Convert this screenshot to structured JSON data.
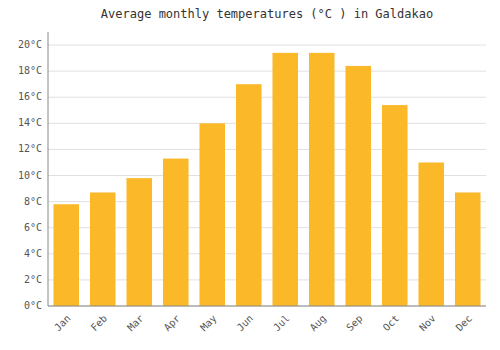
{
  "chart_data": {
    "type": "bar",
    "title": "Average monthly temperatures (°C ) in Galdakao",
    "categories": [
      "Jan",
      "Feb",
      "Mar",
      "Apr",
      "May",
      "Jun",
      "Jul",
      "Aug",
      "Sep",
      "Oct",
      "Nov",
      "Dec"
    ],
    "values": [
      7.8,
      8.7,
      9.8,
      11.3,
      14.0,
      17.0,
      19.4,
      19.4,
      18.4,
      15.4,
      11.0,
      8.7
    ],
    "color": "#FBB829",
    "ylim": [
      0,
      21
    ],
    "yticks": [
      {
        "value": 0,
        "label": "0°C"
      },
      {
        "value": 2,
        "label": "2°C"
      },
      {
        "value": 4,
        "label": "4°C"
      },
      {
        "value": 6,
        "label": "6°C"
      },
      {
        "value": 8,
        "label": "8°C"
      },
      {
        "value": 10,
        "label": "10°C"
      },
      {
        "value": 12,
        "label": "12°C"
      },
      {
        "value": 14,
        "label": "14°C"
      },
      {
        "value": 16,
        "label": "16°C"
      },
      {
        "value": 18,
        "label": "18°C"
      },
      {
        "value": 20,
        "label": "20°C"
      }
    ],
    "grid": true
  }
}
